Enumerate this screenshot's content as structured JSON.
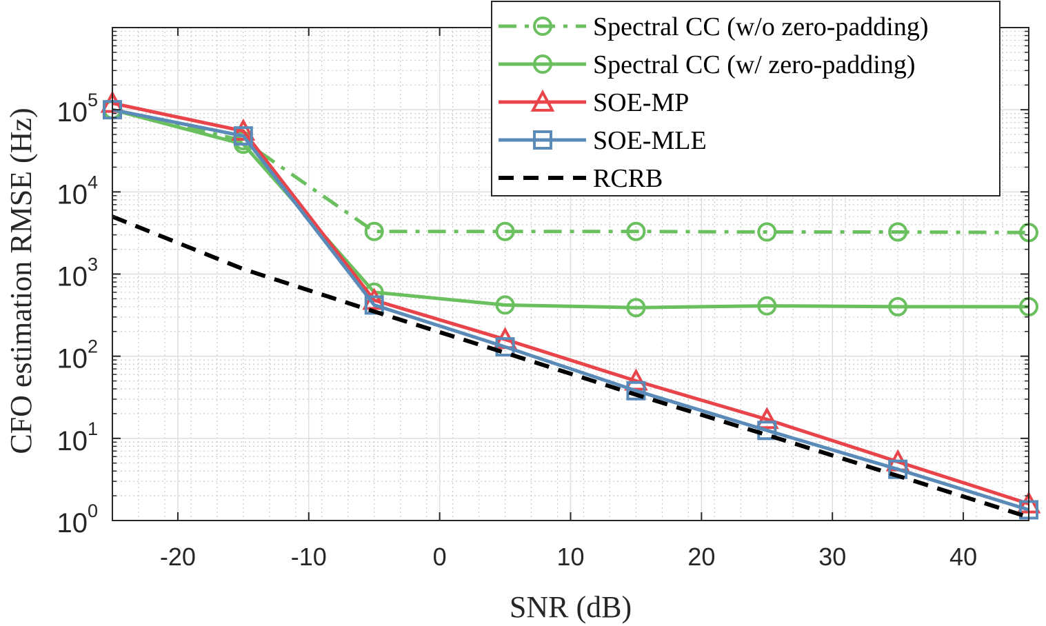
{
  "chart_data": {
    "type": "line",
    "xlabel": "SNR (dB)",
    "ylabel": "CFO estimation RMSE (Hz)",
    "xlim": [
      -25,
      45
    ],
    "ylim": [
      1,
      1000000
    ],
    "yscale": "log",
    "grid": true,
    "minor_grid": true,
    "legend_position": "top-right",
    "x_ticks": [
      -20,
      -10,
      0,
      10,
      20,
      30,
      40
    ],
    "x_tick_labels": [
      "-20",
      "-10",
      "0",
      "10",
      "20",
      "30",
      "40"
    ],
    "y_ticks": [
      1,
      10,
      100,
      1000,
      10000,
      100000
    ],
    "y_tick_labels": [
      {
        "base": "10",
        "exp": "0"
      },
      {
        "base": "10",
        "exp": "1"
      },
      {
        "base": "10",
        "exp": "2"
      },
      {
        "base": "10",
        "exp": "3"
      },
      {
        "base": "10",
        "exp": "4"
      },
      {
        "base": "10",
        "exp": "5"
      }
    ],
    "series": [
      {
        "name": "Spectral CC (w/o zero-padding)",
        "color": "#6abf5e",
        "line": "dashdot",
        "marker": "circle",
        "x": [
          -25,
          -15,
          -5,
          5,
          15,
          25,
          35,
          45
        ],
        "y": [
          100000,
          42000,
          3300,
          3300,
          3300,
          3250,
          3250,
          3200
        ]
      },
      {
        "name": "Spectral CC (w/ zero-padding)",
        "color": "#6abf5e",
        "line": "solid",
        "marker": "circle",
        "x": [
          -25,
          -15,
          -5,
          5,
          15,
          25,
          35,
          45
        ],
        "y": [
          100000,
          38000,
          600,
          420,
          390,
          410,
          400,
          400
        ]
      },
      {
        "name": "SOE-MP",
        "color": "#e8444a",
        "line": "solid",
        "marker": "triangle",
        "x": [
          -25,
          -15,
          -5,
          5,
          15,
          25,
          35,
          45
        ],
        "y": [
          120000,
          55000,
          480,
          160,
          50,
          17,
          5.2,
          1.6
        ]
      },
      {
        "name": "SOE-MLE",
        "color": "#5a8bb8",
        "line": "solid",
        "marker": "square",
        "x": [
          -25,
          -15,
          -5,
          5,
          15,
          25,
          35,
          45
        ],
        "y": [
          100000,
          48000,
          420,
          130,
          38,
          12.5,
          4.2,
          1.35
        ]
      },
      {
        "name": "RCRB",
        "color": "#000000",
        "line": "dashed",
        "marker": "none",
        "x": [
          -25,
          -15,
          -5,
          5,
          15,
          25,
          35,
          45
        ],
        "y": [
          5000,
          1150,
          350,
          110,
          34,
          11,
          3.5,
          1.1
        ]
      }
    ]
  }
}
